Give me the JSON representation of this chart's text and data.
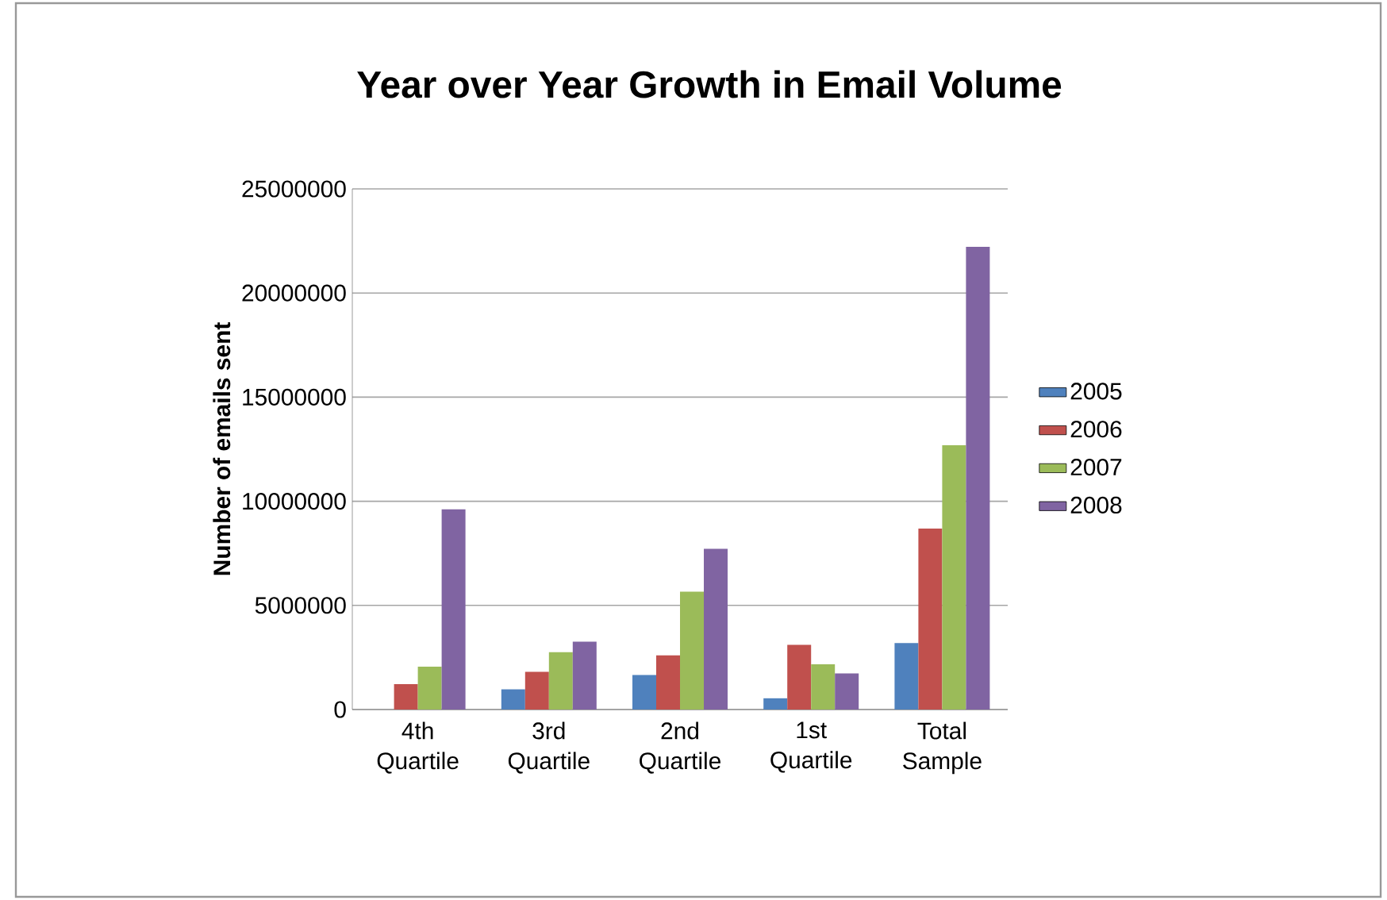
{
  "chart_data": {
    "type": "bar",
    "title": "Year over Year Growth in Email Volume",
    "ylabel": "Number of emails sent",
    "categories": [
      "4th Quartile",
      "3rd Quartile",
      "2nd Quartile",
      "1st Quartile",
      "Total Sample"
    ],
    "series": [
      {
        "name": "2005",
        "color": "#4f81bd",
        "values": [
          null,
          970000,
          1660000,
          540000,
          3190000
        ]
      },
      {
        "name": "2006",
        "color": "#c0504d",
        "values": [
          1220000,
          1810000,
          2600000,
          3110000,
          8690000
        ]
      },
      {
        "name": "2007",
        "color": "#9bbb59",
        "values": [
          2060000,
          2750000,
          5660000,
          2170000,
          12690000
        ]
      },
      {
        "name": "2008",
        "color": "#8064a2",
        "values": [
          9610000,
          3260000,
          7720000,
          1730000,
          22220000
        ]
      }
    ],
    "ylim": [
      0,
      25000000
    ],
    "yticks": [
      0,
      5000000,
      10000000,
      15000000,
      20000000,
      25000000
    ],
    "grid": "y",
    "legend": "right"
  }
}
